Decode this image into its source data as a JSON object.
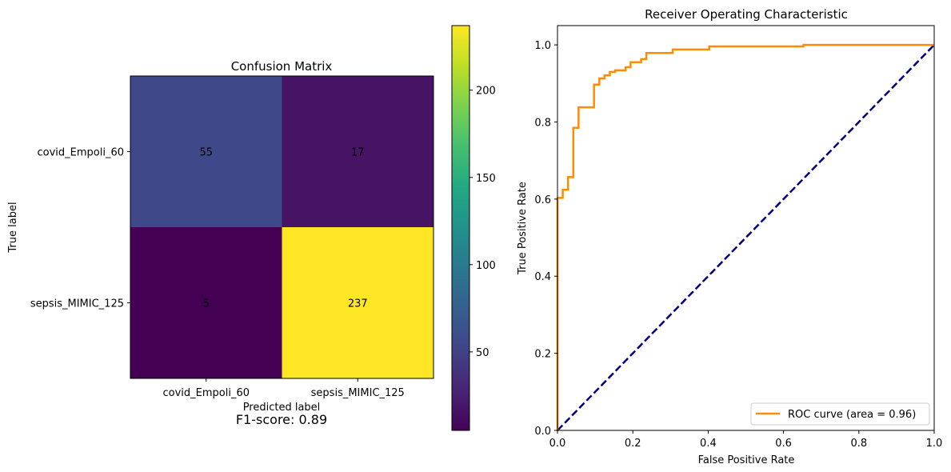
{
  "chart_data": [
    {
      "type": "heatmap",
      "title": "Confusion Matrix",
      "xlabel": "Predicted label",
      "ylabel": "True label",
      "x_categories": [
        "covid_Empoli_60",
        "sepsis_MIMIC_125"
      ],
      "y_categories": [
        "covid_Empoli_60",
        "sepsis_MIMIC_125"
      ],
      "values": [
        [
          55,
          17
        ],
        [
          5,
          237
        ]
      ],
      "colormap": "viridis",
      "colorbar": {
        "range": [
          5,
          237
        ],
        "ticks": [
          50,
          100,
          150,
          200
        ]
      },
      "note": "F1-score: 0.89"
    },
    {
      "type": "line",
      "title": "Receiver Operating Characteristic",
      "xlabel": "False Positive Rate",
      "ylabel": "True Positive Rate",
      "xlim": [
        0,
        1.0
      ],
      "ylim": [
        0,
        1.05
      ],
      "xticks": [
        "0.0",
        "0.2",
        "0.4",
        "0.6",
        "0.8",
        "1.0"
      ],
      "yticks": [
        "0.0",
        "0.2",
        "0.4",
        "0.6",
        "0.8",
        "1.0"
      ],
      "legend_position": "lower-right",
      "series": [
        {
          "name": "ROC curve (area = 0.96)",
          "color": "#ff8c00",
          "x": [
            0,
            0,
            0.014,
            0.014,
            0.028,
            0.028,
            0.042,
            0.042,
            0.056,
            0.056,
            0.069,
            0.069,
            0.097,
            0.097,
            0.111,
            0.111,
            0.125,
            0.125,
            0.139,
            0.139,
            0.153,
            0.153,
            0.181,
            0.181,
            0.194,
            0.194,
            0.222,
            0.222,
            0.236,
            0.236,
            0.306,
            0.306,
            0.403,
            0.403,
            0.653,
            0.653,
            1.0
          ],
          "y": [
            0,
            0.603,
            0.603,
            0.624,
            0.624,
            0.657,
            0.657,
            0.785,
            0.785,
            0.838,
            0.838,
            0.838,
            0.838,
            0.897,
            0.897,
            0.913,
            0.913,
            0.921,
            0.921,
            0.93,
            0.93,
            0.934,
            0.934,
            0.942,
            0.942,
            0.955,
            0.955,
            0.963,
            0.963,
            0.979,
            0.979,
            0.988,
            0.988,
            0.996,
            0.996,
            1.0,
            1.0
          ]
        },
        {
          "color": "#000080",
          "style": "dashed",
          "x": [
            0,
            1
          ],
          "y": [
            0,
            1
          ]
        }
      ]
    }
  ]
}
